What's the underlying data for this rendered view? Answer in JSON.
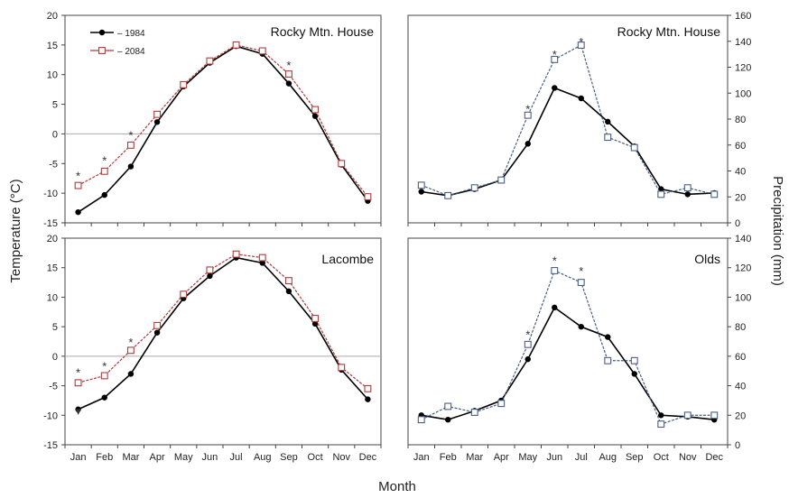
{
  "figure": {
    "xlabel": "Month",
    "ylabel_left": "Temperature (°C)",
    "ylabel_right": "Precipitation (mm)"
  },
  "chart_data": [
    {
      "type": "line",
      "title": "Rocky Mtn. House",
      "categories": [
        "Jan",
        "Feb",
        "Mar",
        "Apr",
        "May",
        "Jun",
        "Jul",
        "Aug",
        "Sep",
        "Oct",
        "Nov",
        "Dec"
      ],
      "ylim": [
        -15,
        20
      ],
      "yticks": [
        -15,
        -10,
        -5,
        0,
        5,
        10,
        15,
        20
      ],
      "legend": "top-left",
      "series": [
        {
          "name": "1984",
          "color": "#000000",
          "marker": "filled-circle",
          "values": [
            -13.2,
            -10.3,
            -5.5,
            2.0,
            8.0,
            12.0,
            14.8,
            13.5,
            8.5,
            3.0,
            -5.2,
            -11.3
          ]
        },
        {
          "name": "2084",
          "color": "#b23a3a",
          "marker": "open-square",
          "values": [
            -8.7,
            -6.3,
            -1.9,
            3.3,
            8.3,
            12.3,
            15.0,
            14.0,
            10.1,
            4.1,
            -5.0,
            -10.6
          ]
        }
      ],
      "significance_marks": [
        {
          "x": "Jan",
          "y": -7.0,
          "label": "*"
        },
        {
          "x": "Feb",
          "y": -4.4,
          "label": "*"
        },
        {
          "x": "Mar",
          "y": -0.2,
          "label": "*"
        },
        {
          "x": "Sep",
          "y": 11.6,
          "label": "*"
        }
      ]
    },
    {
      "type": "line",
      "title": "Rocky Mtn. House",
      "categories": [
        "Jan",
        "Feb",
        "Mar",
        "Apr",
        "May",
        "Jun",
        "Jul",
        "Aug",
        "Sep",
        "Oct",
        "Nov",
        "Dec"
      ],
      "ylim": [
        0,
        160
      ],
      "yticks": [
        0,
        20,
        40,
        60,
        80,
        100,
        120,
        140,
        160
      ],
      "series": [
        {
          "name": "1984",
          "color": "#000000",
          "marker": "filled-circle",
          "values": [
            24,
            21,
            26,
            33,
            61,
            104,
            96,
            78,
            59,
            26,
            22,
            23
          ]
        },
        {
          "name": "2084",
          "color": "#4a5e86",
          "marker": "open-square",
          "values": [
            29,
            21,
            27,
            33,
            83,
            126,
            137,
            66,
            58,
            22,
            27,
            22
          ]
        }
      ],
      "significance_marks": [
        {
          "x": "May",
          "y": 88,
          "label": "*"
        },
        {
          "x": "Jun",
          "y": 130,
          "label": "*"
        },
        {
          "x": "Jul",
          "y": 140,
          "label": "*"
        }
      ]
    },
    {
      "type": "line",
      "title": "Lacombe",
      "categories": [
        "Jan",
        "Feb",
        "Mar",
        "Apr",
        "May",
        "Jun",
        "Jul",
        "Aug",
        "Sep",
        "Oct",
        "Nov",
        "Dec"
      ],
      "ylim": [
        -15,
        20
      ],
      "yticks": [
        -15,
        -10,
        -5,
        0,
        5,
        10,
        15,
        20
      ],
      "series": [
        {
          "name": "1984",
          "color": "#000000",
          "marker": "filled-circle",
          "values": [
            -9.0,
            -7.0,
            -3.0,
            4.0,
            9.8,
            13.6,
            16.7,
            15.8,
            11.0,
            5.5,
            -2.3,
            -7.3
          ]
        },
        {
          "name": "2084",
          "color": "#b23a3a",
          "marker": "open-square",
          "values": [
            -4.5,
            -3.3,
            1.0,
            5.2,
            10.5,
            14.6,
            17.3,
            16.7,
            12.8,
            6.4,
            -1.9,
            -5.5
          ]
        }
      ],
      "significance_marks": [
        {
          "x": "Jan",
          "y": -9.2,
          "label": "▾"
        },
        {
          "x": "Jan",
          "y": -2.7,
          "label": "*"
        },
        {
          "x": "Feb",
          "y": -1.6,
          "label": "*"
        },
        {
          "x": "Mar",
          "y": 2.4,
          "label": "*"
        }
      ]
    },
    {
      "type": "line",
      "title": "Olds",
      "categories": [
        "Jan",
        "Feb",
        "Mar",
        "Apr",
        "May",
        "Jun",
        "Jul",
        "Aug",
        "Sep",
        "Oct",
        "Nov",
        "Dec"
      ],
      "ylim": [
        0,
        140
      ],
      "yticks": [
        0,
        20,
        40,
        60,
        80,
        100,
        120,
        140
      ],
      "series": [
        {
          "name": "1984",
          "color": "#000000",
          "marker": "filled-circle",
          "values": [
            20,
            17,
            23,
            30,
            58,
            93,
            80,
            73,
            48,
            20,
            19,
            17
          ]
        },
        {
          "name": "2084",
          "color": "#4a5e86",
          "marker": "open-square",
          "values": [
            17,
            26,
            22,
            28,
            68,
            118,
            110,
            57,
            57,
            14,
            20,
            20
          ]
        }
      ],
      "significance_marks": [
        {
          "x": "May",
          "y": 75,
          "label": "*"
        },
        {
          "x": "Jun",
          "y": 125,
          "label": "*"
        },
        {
          "x": "Jul",
          "y": 118,
          "label": "*"
        }
      ]
    }
  ]
}
